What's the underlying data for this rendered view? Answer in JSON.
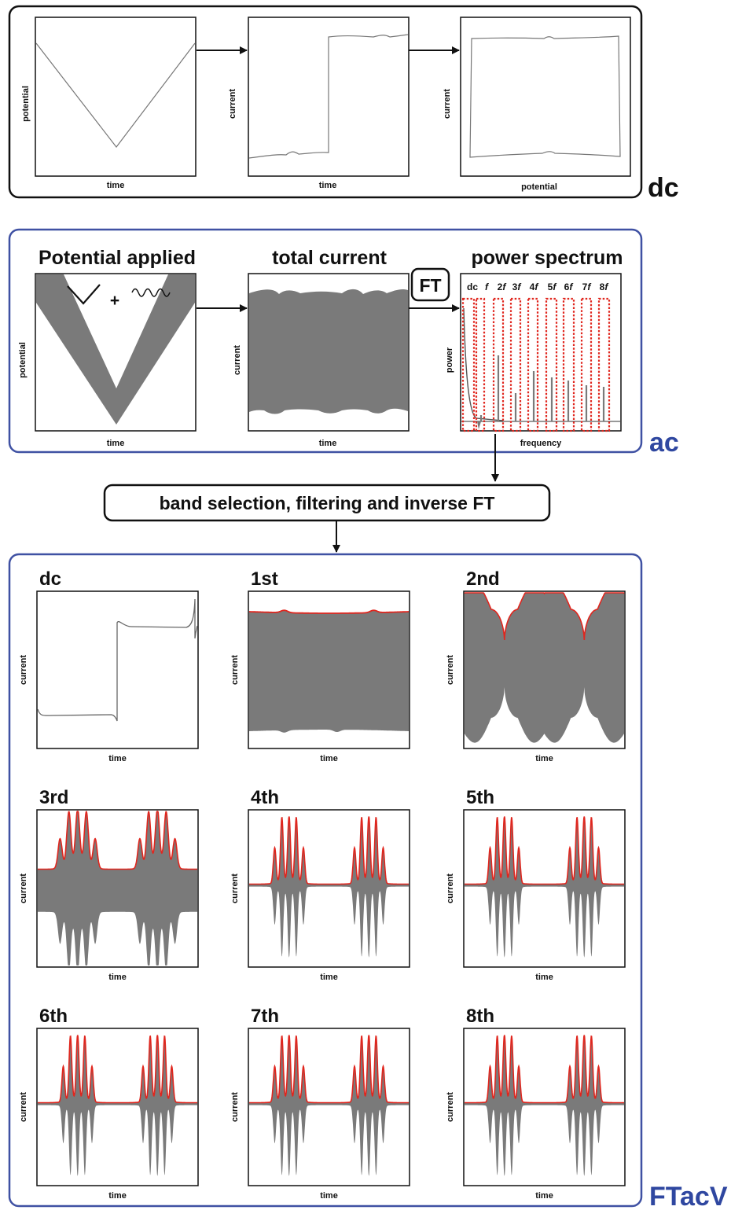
{
  "colors": {
    "dc_frame": "#111111",
    "blue_frame": "#3f51a3",
    "trace_gray": "#7a7a7a",
    "envelope_red": "#e0261e",
    "dotted_red": "#e0261e",
    "section_label_blue": "#2f47a0"
  },
  "dc_section": {
    "label": "dc",
    "panels": [
      {
        "kind": "potential-vs-time",
        "xlabel": "time",
        "ylabel": "potential"
      },
      {
        "kind": "current-vs-time",
        "xlabel": "time",
        "ylabel": "current"
      },
      {
        "kind": "current-vs-potential",
        "xlabel": "potential",
        "ylabel": "current"
      }
    ]
  },
  "ac_section": {
    "label": "ac",
    "panels": [
      {
        "title": "Potential applied",
        "xlabel": "time",
        "ylabel": "potential",
        "inset_plus": "+"
      },
      {
        "title": "total current",
        "xlabel": "time",
        "ylabel": "current"
      },
      {
        "title": "power spectrum",
        "xlabel": "frequency",
        "ylabel": "power",
        "bands": [
          "dc",
          "f",
          "2f",
          "3f",
          "4f",
          "5f",
          "6f",
          "7f",
          "8f"
        ]
      }
    ],
    "ft_box": "FT"
  },
  "step_box": "band selection, filtering and inverse FT",
  "ftacv_section": {
    "label": "FTacV",
    "xlabel": "time",
    "ylabel": "current",
    "panels": [
      {
        "title": "dc",
        "harmonic": 0
      },
      {
        "title": "1st",
        "harmonic": 1
      },
      {
        "title": "2nd",
        "harmonic": 2
      },
      {
        "title": "3rd",
        "harmonic": 3
      },
      {
        "title": "4th",
        "harmonic": 4
      },
      {
        "title": "5th",
        "harmonic": 5
      },
      {
        "title": "6th",
        "harmonic": 6
      },
      {
        "title": "7th",
        "harmonic": 7
      },
      {
        "title": "8th",
        "harmonic": 8
      }
    ]
  }
}
